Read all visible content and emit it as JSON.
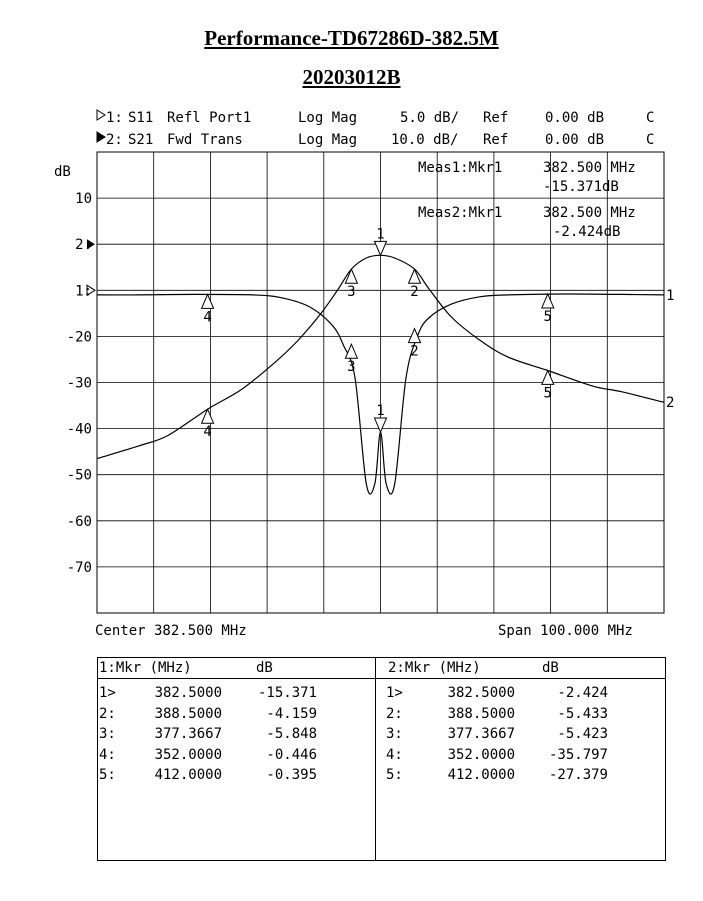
{
  "title": "Performance-TD67286D-382.5M",
  "subtitle": "20203012B",
  "header": {
    "trace1": {
      "marker": "1:",
      "param": "S11",
      "desc": "Refl Port1",
      "format": "Log Mag",
      "scale": "5.0 dB/",
      "ref": "Ref",
      "ref_value": "0.00 dB",
      "flag": "C"
    },
    "trace2": {
      "marker": "2:",
      "param": "S21",
      "desc": "Fwd Trans",
      "format": "Log Mag",
      "scale": "10.0 dB/",
      "ref": "Ref",
      "ref_value": "0.00 dB",
      "flag": "C"
    }
  },
  "meas": {
    "meas1_label": "Meas1:Mkr1",
    "meas1_freq": "382.500 MHz",
    "meas1_val": "-15.371dB",
    "meas2_label": "Meas2:Mkr1",
    "meas2_freq": "382.500 MHz",
    "meas2_val": "-2.424dB"
  },
  "axis": {
    "unit": "dB",
    "left_labels": [
      "10",
      "2:",
      "1:",
      "-20",
      "-30",
      "-40",
      "-50",
      "-60",
      "-70"
    ],
    "center_label": "Center 382.500 MHz",
    "span_label": "Span 100.000 MHz",
    "trace_end_label_1": "1",
    "trace_end_label_2": "2"
  },
  "table": {
    "left_header": {
      "mkr": "1:Mkr (MHz)",
      "unit": "dB"
    },
    "right_header": {
      "mkr": "2:Mkr (MHz)",
      "unit": "dB"
    },
    "left_rows": [
      {
        "id": "1>",
        "freq": "382.5000",
        "val": "-15.371"
      },
      {
        "id": "2:",
        "freq": "388.5000",
        "val": "-4.159"
      },
      {
        "id": "3:",
        "freq": "377.3667",
        "val": "-5.848"
      },
      {
        "id": "4:",
        "freq": "352.0000",
        "val": "-0.446"
      },
      {
        "id": "5:",
        "freq": "412.0000",
        "val": "-0.395"
      }
    ],
    "right_rows": [
      {
        "id": "1>",
        "freq": "382.5000",
        "val": "-2.424"
      },
      {
        "id": "2:",
        "freq": "388.5000",
        "val": "-5.433"
      },
      {
        "id": "3:",
        "freq": "377.3667",
        "val": "-5.423"
      },
      {
        "id": "4:",
        "freq": "352.0000",
        "val": "-35.797"
      },
      {
        "id": "5:",
        "freq": "412.0000",
        "val": "-27.379"
      }
    ]
  },
  "chart_data": {
    "type": "line",
    "title": "Performance-TD67286D-382.5M",
    "subtitle": "20203012B",
    "x_range": [
      332.5,
      432.5
    ],
    "grid": true,
    "series": [
      {
        "name": "S11",
        "scale_db_per_div": 5.0,
        "x": [
          332.5,
          340,
          350,
          360,
          365,
          370,
          374,
          376,
          378,
          380,
          381.5,
          382.5,
          383.5,
          385,
          387,
          389,
          391,
          395,
          400,
          405,
          415,
          425,
          432.5
        ],
        "y": [
          -0.5,
          -0.5,
          -0.45,
          -0.5,
          -0.8,
          -1.8,
          -3.8,
          -6.0,
          -9.5,
          -21,
          -21,
          -15.371,
          -21,
          -21,
          -9.5,
          -5.0,
          -3.0,
          -1.5,
          -0.7,
          -0.5,
          -0.4,
          -0.45,
          -0.5
        ],
        "markers": [
          {
            "id": "1",
            "x": 382.5,
            "y": -15.371
          },
          {
            "id": "2",
            "x": 388.5,
            "y": -4.159
          },
          {
            "id": "3",
            "x": 377.3667,
            "y": -5.848
          },
          {
            "id": "4",
            "x": 352.0,
            "y": -0.446
          },
          {
            "id": "5",
            "x": 412.0,
            "y": -0.395
          }
        ]
      },
      {
        "name": "S21",
        "scale_db_per_div": 10.0,
        "x": [
          332.5,
          340,
          345,
          352,
          358,
          364,
          368,
          372,
          375,
          377.3667,
          380,
          382.5,
          385,
          388.5,
          391,
          395,
          400,
          405,
          412,
          420,
          425,
          432.5
        ],
        "y": [
          -46.5,
          -43.7,
          -41.5,
          -35.8,
          -31.5,
          -25.5,
          -20.8,
          -15.0,
          -9.8,
          -5.4,
          -3.0,
          -2.4,
          -3.0,
          -5.4,
          -9.6,
          -15.8,
          -20.8,
          -24.5,
          -27.4,
          -30.8,
          -32.0,
          -34.3
        ],
        "markers": [
          {
            "id": "1",
            "x": 382.5,
            "y": -2.424
          },
          {
            "id": "2",
            "x": 388.5,
            "y": -5.433
          },
          {
            "id": "3",
            "x": 377.3667,
            "y": -5.423
          },
          {
            "id": "4",
            "x": 352.0,
            "y": -35.797
          },
          {
            "id": "5",
            "x": 412.0,
            "y": -27.379
          }
        ]
      }
    ]
  }
}
